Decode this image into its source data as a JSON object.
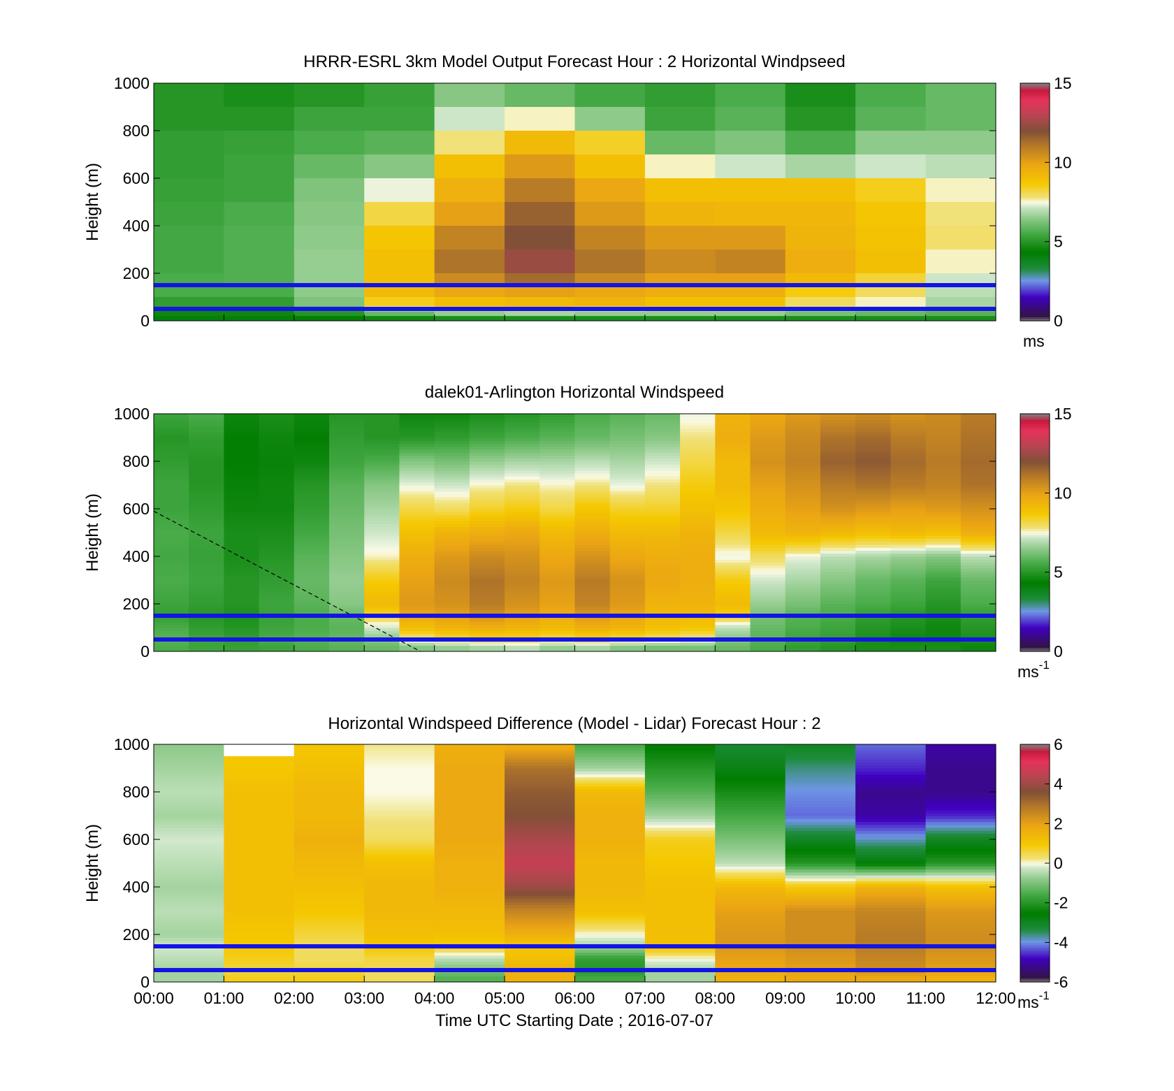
{
  "figure": {
    "xlabel": "Time UTC  Starting Date ; 2016-07-07",
    "x_ticks": [
      "00:00",
      "01:00",
      "02:00",
      "03:00",
      "04:00",
      "05:00",
      "06:00",
      "07:00",
      "08:00",
      "09:00",
      "10:00",
      "11:00",
      "12:00"
    ],
    "y_ticks": [
      "0",
      "200",
      "400",
      "600",
      "800",
      "1000"
    ],
    "ylabel": "Height (m)",
    "marker_lines_m": [
      50,
      150
    ],
    "marker_line_color": "#1414e6"
  },
  "chart_data": [
    {
      "type": "heatmap",
      "title": "HRRR-ESRL 3km Model Output   Forecast Hour : 2 Horizontal Windpseed",
      "ylabel": "Height (m)",
      "xlim": [
        0,
        12
      ],
      "ylim": [
        0,
        1000
      ],
      "colorbar": {
        "ticks": [
          "0",
          "5",
          "10",
          "15"
        ],
        "range": [
          0,
          15
        ],
        "unit": "ms",
        "unit_sup": ""
      },
      "x_hours": [
        0,
        1,
        2,
        3,
        4,
        5,
        6,
        7,
        8,
        9,
        10,
        11
      ],
      "rows_top_m": [
        1000,
        900,
        800,
        700,
        600,
        500,
        400,
        300,
        200,
        150,
        100,
        60,
        40,
        20
      ],
      "values": [
        [
          5.0,
          4.8,
          5.0,
          5.3,
          6.4,
          6.0,
          5.5,
          5.2,
          5.6,
          4.8,
          5.6,
          6.0
        ],
        [
          5.0,
          5.0,
          5.4,
          5.4,
          7.2,
          7.6,
          6.5,
          5.4,
          5.8,
          5.0,
          5.8,
          6.0
        ],
        [
          5.2,
          5.3,
          5.6,
          5.8,
          7.8,
          9.2,
          8.4,
          6.0,
          6.3,
          5.6,
          6.5,
          6.5
        ],
        [
          5.2,
          5.4,
          6.0,
          6.4,
          9.0,
          10.2,
          9.0,
          7.6,
          7.2,
          6.8,
          7.2,
          7.0
        ],
        [
          5.3,
          5.4,
          6.3,
          7.4,
          9.5,
          11.0,
          9.8,
          9.0,
          9.0,
          9.0,
          8.5,
          7.6
        ],
        [
          5.4,
          5.6,
          6.4,
          8.2,
          10.0,
          11.6,
          10.2,
          9.4,
          9.3,
          9.3,
          8.8,
          7.8
        ],
        [
          5.5,
          5.7,
          6.5,
          8.8,
          10.8,
          12.0,
          10.8,
          10.2,
          10.2,
          9.4,
          8.9,
          7.9
        ],
        [
          5.5,
          5.7,
          6.6,
          9.0,
          11.2,
          12.4,
          11.2,
          10.6,
          10.8,
          9.6,
          9.0,
          7.6
        ],
        [
          5.6,
          5.7,
          6.6,
          9.0,
          10.6,
          11.4,
          10.6,
          10.0,
          10.0,
          9.2,
          8.3,
          7.2
        ],
        [
          5.6,
          5.6,
          6.5,
          9.2,
          9.8,
          10.0,
          9.8,
          9.6,
          9.6,
          8.6,
          8.0,
          7.0
        ],
        [
          5.2,
          5.2,
          6.3,
          8.5,
          9.0,
          9.2,
          9.4,
          9.0,
          9.0,
          8.0,
          7.6,
          6.8
        ],
        [
          4.8,
          4.8,
          5.6,
          7.4,
          8.2,
          8.2,
          7.6,
          8.0,
          8.0,
          7.0,
          6.8,
          6.4
        ],
        [
          4.6,
          4.6,
          5.0,
          6.0,
          6.6,
          6.8,
          6.6,
          6.6,
          6.6,
          6.2,
          6.0,
          5.8
        ],
        [
          4.2,
          4.2,
          4.4,
          4.6,
          4.8,
          4.8,
          4.8,
          4.8,
          4.8,
          4.8,
          4.8,
          4.8
        ]
      ]
    },
    {
      "type": "heatmap",
      "title": "dalek01-Arlington  Horizontal Windspeed",
      "ylabel": "Height (m)",
      "xlim": [
        0,
        12
      ],
      "ylim": [
        0,
        1000
      ],
      "colorbar": {
        "ticks": [
          "0",
          "5",
          "10",
          "15"
        ],
        "range": [
          0,
          15
        ],
        "unit": "ms",
        "unit_sup": "-1"
      },
      "x_hours": [
        0,
        0.5,
        1,
        1.5,
        2,
        2.5,
        3,
        3.5,
        4,
        4.5,
        5,
        5.5,
        6,
        6.5,
        7,
        7.5,
        8,
        8.5,
        9,
        9.5,
        10,
        10.5,
        11,
        11.5
      ],
      "profile_heights_m": [
        1000,
        900,
        800,
        700,
        600,
        500,
        400,
        300,
        200,
        150,
        100,
        50,
        20
      ],
      "columns": [
        [
          5.4,
          5.0,
          5.2,
          5.4,
          5.4,
          5.6,
          5.5,
          5.6,
          5.4,
          5.2,
          5.6,
          5.8,
          5.6
        ],
        [
          5.6,
          5.2,
          5.0,
          5.0,
          5.2,
          5.4,
          5.3,
          5.4,
          5.2,
          5.0,
          5.2,
          5.4,
          5.4
        ],
        [
          4.6,
          4.4,
          4.4,
          4.5,
          4.6,
          4.8,
          4.8,
          5.0,
          5.0,
          4.8,
          5.0,
          5.2,
          5.3
        ],
        [
          4.8,
          4.6,
          4.5,
          4.6,
          4.6,
          4.8,
          5.0,
          5.2,
          5.4,
          5.3,
          5.4,
          5.6,
          5.4
        ],
        [
          4.6,
          4.4,
          4.6,
          5.0,
          5.2,
          5.5,
          5.8,
          6.0,
          5.8,
          5.6,
          5.6,
          5.8,
          5.6
        ],
        [
          5.0,
          5.2,
          5.4,
          5.8,
          6.0,
          6.2,
          6.4,
          6.6,
          6.4,
          6.0,
          5.8,
          6.0,
          5.8
        ],
        [
          5.0,
          5.0,
          5.6,
          6.4,
          6.8,
          7.2,
          7.6,
          8.6,
          9.2,
          8.2,
          7.2,
          6.4,
          6.0
        ],
        [
          4.6,
          5.0,
          6.4,
          7.4,
          8.2,
          9.0,
          9.6,
          10.0,
          10.2,
          9.8,
          9.0,
          7.6,
          6.4
        ],
        [
          4.6,
          5.2,
          6.2,
          7.2,
          8.0,
          9.4,
          10.2,
          10.6,
          10.4,
          10.0,
          9.4,
          8.0,
          6.6
        ],
        [
          4.8,
          5.4,
          6.6,
          7.6,
          8.4,
          9.6,
          10.6,
          11.2,
          11.0,
          10.4,
          9.6,
          8.2,
          6.8
        ],
        [
          5.0,
          5.6,
          6.8,
          7.8,
          8.6,
          9.8,
          10.4,
          10.8,
          10.4,
          10.0,
          9.4,
          8.2,
          7.0
        ],
        [
          5.2,
          5.8,
          6.8,
          7.6,
          8.2,
          9.2,
          9.8,
          10.2,
          10.0,
          9.6,
          9.2,
          8.0,
          6.6
        ],
        [
          5.6,
          6.0,
          7.0,
          7.8,
          8.8,
          9.6,
          10.4,
          11.0,
          10.8,
          10.2,
          9.6,
          8.2,
          6.8
        ],
        [
          5.8,
          6.2,
          6.8,
          7.4,
          8.4,
          9.2,
          9.8,
          10.4,
          10.2,
          9.8,
          9.4,
          8.0,
          6.4
        ],
        [
          6.0,
          6.4,
          7.2,
          7.8,
          8.4,
          9.2,
          9.6,
          9.8,
          9.4,
          9.2,
          9.0,
          7.8,
          6.2
        ],
        [
          7.4,
          7.8,
          8.2,
          8.6,
          9.0,
          9.4,
          9.6,
          9.6,
          9.4,
          9.2,
          8.8,
          7.6,
          6.2
        ],
        [
          9.4,
          9.6,
          9.2,
          9.2,
          8.8,
          8.2,
          7.4,
          8.6,
          9.2,
          8.4,
          7.0,
          6.4,
          6.0
        ],
        [
          9.8,
          10.2,
          10.4,
          10.0,
          9.6,
          9.2,
          8.0,
          7.2,
          6.6,
          6.2,
          6.0,
          5.8,
          5.6
        ],
        [
          10.2,
          10.6,
          10.8,
          10.4,
          10.0,
          9.4,
          7.4,
          6.8,
          6.2,
          5.8,
          5.6,
          5.4,
          5.2
        ],
        [
          10.4,
          11.2,
          11.6,
          11.0,
          10.4,
          9.2,
          7.0,
          6.4,
          5.8,
          5.6,
          5.4,
          5.2,
          5.0
        ],
        [
          10.6,
          11.4,
          11.8,
          11.2,
          10.2,
          9.0,
          6.8,
          6.0,
          5.6,
          5.2,
          5.0,
          4.8,
          4.8
        ],
        [
          10.4,
          11.0,
          11.4,
          11.0,
          10.0,
          9.2,
          6.6,
          5.8,
          5.4,
          5.0,
          4.8,
          4.6,
          4.8
        ],
        [
          10.6,
          10.8,
          11.0,
          10.8,
          10.2,
          9.0,
          6.4,
          5.4,
          5.0,
          4.8,
          4.6,
          4.6,
          4.8
        ],
        [
          11.0,
          11.2,
          11.4,
          11.2,
          10.4,
          9.6,
          7.0,
          6.0,
          5.6,
          5.2,
          5.0,
          4.8,
          4.6
        ]
      ],
      "reference_line": {
        "style": "dashed",
        "from": [
          0,
          590
        ],
        "to": [
          3.8,
          0
        ]
      }
    },
    {
      "type": "heatmap",
      "title": "Horizontal Windspeed Difference (Model - Lidar) Forecast Hour : 2",
      "ylabel": "Height (m)",
      "xlabel": "Time UTC  Starting Date ; 2016-07-07",
      "xlim": [
        0,
        12
      ],
      "ylim": [
        0,
        1000
      ],
      "colorbar": {
        "ticks": [
          "-6",
          "-4",
          "-2",
          "0",
          "2",
          "4",
          "6"
        ],
        "range": [
          -6,
          6
        ],
        "unit": "ms",
        "unit_sup": "-1"
      },
      "x_hours": [
        0,
        1,
        2,
        3,
        4,
        5,
        6,
        7,
        8,
        9,
        10,
        11
      ],
      "profile_heights_m": [
        1000,
        900,
        800,
        700,
        600,
        500,
        400,
        300,
        200,
        150,
        100,
        50,
        20
      ],
      "columns": [
        [
          -0.8,
          -0.6,
          -0.4,
          -0.6,
          -0.2,
          -0.4,
          -0.6,
          -0.4,
          -0.6,
          -0.2,
          -0.4,
          -0.6,
          -0.6
        ],
        [
          null,
          1.0,
          1.2,
          1.2,
          1.2,
          1.2,
          1.2,
          1.2,
          1.0,
          1.0,
          0.8,
          0.6,
          0.8
        ],
        [
          1.0,
          1.2,
          1.4,
          1.4,
          1.6,
          1.4,
          1.2,
          1.0,
          0.6,
          0.4,
          0.4,
          0.6,
          0.8
        ],
        [
          0.2,
          0.0,
          0.0,
          0.2,
          0.4,
          1.2,
          1.4,
          1.4,
          1.2,
          1.0,
          0.6,
          0.4,
          0.4
        ],
        [
          1.6,
          1.8,
          1.8,
          1.8,
          1.8,
          1.6,
          1.6,
          1.4,
          1.2,
          0.8,
          -0.4,
          -1.0,
          -1.4
        ],
        [
          1.6,
          3.0,
          3.4,
          3.6,
          4.2,
          4.6,
          4.0,
          2.6,
          1.6,
          1.0,
          1.2,
          1.6,
          1.6
        ],
        [
          -1.6,
          -0.6,
          1.4,
          1.6,
          1.6,
          1.4,
          1.4,
          1.2,
          0.0,
          -0.6,
          -1.8,
          -2.0,
          -1.6
        ],
        [
          -2.6,
          -2.0,
          -1.4,
          -0.6,
          0.8,
          1.0,
          1.2,
          1.2,
          1.2,
          1.2,
          0.0,
          -0.6,
          -0.6
        ],
        [
          -3.2,
          -2.8,
          -2.2,
          -1.6,
          -1.0,
          -0.4,
          1.4,
          2.0,
          2.2,
          2.2,
          2.0,
          1.8,
          1.6
        ],
        [
          -3.0,
          -3.6,
          -4.0,
          -4.2,
          -3.0,
          -2.0,
          1.0,
          2.4,
          2.4,
          2.4,
          2.2,
          2.0,
          1.8
        ],
        [
          -4.2,
          -4.6,
          -5.2,
          -5.0,
          -3.8,
          -2.6,
          1.6,
          2.6,
          2.8,
          2.8,
          2.6,
          2.4,
          1.8
        ],
        [
          -5.0,
          -5.2,
          -5.2,
          -4.6,
          -3.0,
          -2.0,
          1.2,
          2.2,
          2.4,
          2.4,
          2.2,
          2.0,
          1.6
        ]
      ]
    }
  ]
}
